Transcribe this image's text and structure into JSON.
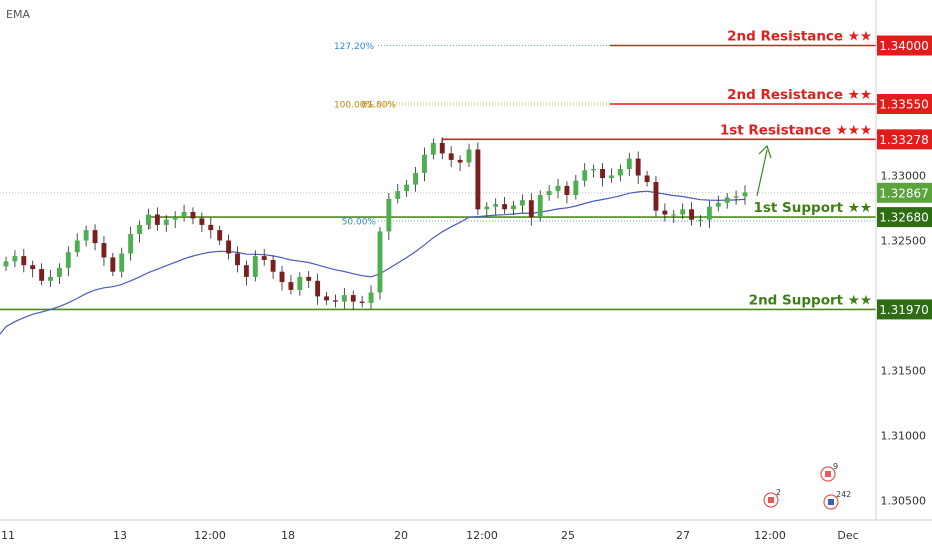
{
  "indicator": {
    "label": "EMA"
  },
  "chart_data": {
    "type": "candlestick",
    "y_axis": {
      "ticks": [
        "1.33000",
        "1.32500",
        "1.31500",
        "1.31000",
        "1.30500"
      ],
      "range": [
        1.3035,
        1.3435
      ]
    },
    "x_axis": {
      "ticks": [
        "11",
        "13",
        "12:00",
        "18",
        "20",
        "12:00",
        "25",
        "27",
        "12:00",
        "Dec"
      ]
    },
    "levels": [
      {
        "name": "2nd Resistance ★★",
        "value": 1.34,
        "price_label": "1.34000",
        "role": "resistance"
      },
      {
        "name": "2nd Resistance ★★",
        "value": 1.3355,
        "price_label": "1.33550",
        "role": "resistance"
      },
      {
        "name": "1st Resistance ★★★",
        "value": 1.33278,
        "price_label": "1.33278",
        "role": "resistance"
      },
      {
        "name": "1st Support ★★",
        "value": 1.3268,
        "price_label": "1.32680",
        "role": "support"
      },
      {
        "name": "2nd Support ★★",
        "value": 1.3197,
        "price_label": "1.31970",
        "role": "support"
      }
    ],
    "current_price": {
      "value": 1.32867,
      "label": "1.32867"
    },
    "fibonacci": [
      {
        "label": "127.20%",
        "value": 1.34
      },
      {
        "label": "100.00%",
        "value": 1.3355
      },
      {
        "label": "61.80%",
        "value": 1.3355
      },
      {
        "label": "50.00%",
        "value": 1.3265
      }
    ],
    "events": [
      {
        "label": "2"
      },
      {
        "label": "9"
      },
      {
        "label": "242"
      }
    ],
    "close_series": [
      1.3234,
      1.3238,
      1.3231,
      1.3228,
      1.3219,
      1.3222,
      1.3229,
      1.3241,
      1.325,
      1.3258,
      1.3248,
      1.3237,
      1.3226,
      1.324,
      1.3255,
      1.3262,
      1.327,
      1.3262,
      1.3266,
      1.3268,
      1.3272,
      1.3267,
      1.3262,
      1.3258,
      1.325,
      1.324,
      1.3231,
      1.3222,
      1.3238,
      1.3235,
      1.3226,
      1.3218,
      1.3212,
      1.3222,
      1.3219,
      1.3207,
      1.3204,
      1.3203,
      1.3208,
      1.3203,
      1.3202,
      1.321,
      1.3257,
      1.3282,
      1.3288,
      1.3293,
      1.3302,
      1.3316,
      1.3325,
      1.3317,
      1.3312,
      1.331,
      1.332,
      1.3274,
      1.3276,
      1.3278,
      1.3274,
      1.3277,
      1.3281,
      1.3268,
      1.3285,
      1.3288,
      1.3292,
      1.3285,
      1.3296,
      1.3304,
      1.3305,
      1.3298,
      1.33,
      1.3305,
      1.3313,
      1.33,
      1.3295,
      1.3273,
      1.327,
      1.327,
      1.3274,
      1.3266,
      1.3266,
      1.3276,
      1.3279,
      1.3283,
      1.3284,
      1.3287
    ]
  }
}
